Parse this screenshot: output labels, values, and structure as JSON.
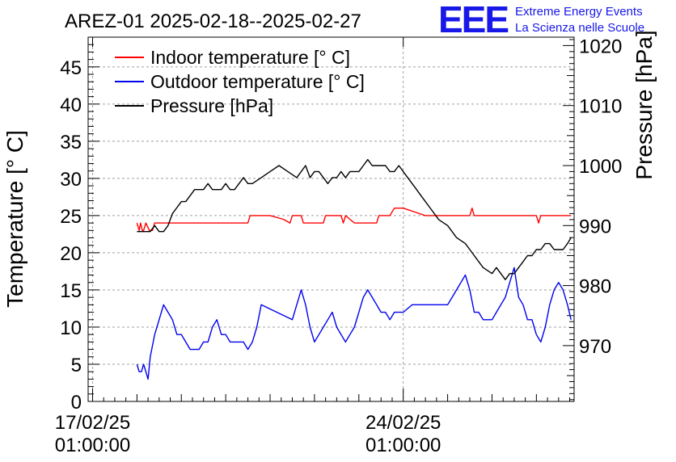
{
  "chart_data": {
    "type": "line",
    "title": "AREZ-01 2025-02-18--2025-02-27",
    "logo": {
      "mark": "EEE",
      "line1": "Extreme Energy Events",
      "line2": "La Scienza nelle Scuole",
      "color": "#1818e8"
    },
    "x_tick_labels": [
      {
        "date": "17/02/25",
        "time": "01:00:00",
        "day": 0
      },
      {
        "date": "24/02/25",
        "time": "01:00:00",
        "day": 7
      }
    ],
    "xlim_days": [
      -0.1,
      10.85
    ],
    "y_left": {
      "label": "Temperature [° C]",
      "ylim": [
        0,
        49
      ],
      "ticks": [
        0,
        5,
        10,
        15,
        20,
        25,
        30,
        35,
        40,
        45
      ]
    },
    "y_right": {
      "label": "Pressure [hPa]",
      "ylim": [
        960.7,
        1021.4
      ],
      "ticks": [
        970,
        980,
        990,
        1000,
        1010,
        1020
      ]
    },
    "grid": true,
    "legend_position": "top-left",
    "x_unit": "days since 17/02/25 01:00:00",
    "series": [
      {
        "name": "Indoor temperature [° C]",
        "color": "#ff0000",
        "axis": "left",
        "x": [
          1.0,
          1.05,
          1.08,
          1.12,
          1.15,
          1.2,
          1.28,
          1.35,
          1.4,
          1.5,
          1.6,
          1.8,
          2.0,
          2.5,
          3.0,
          3.5,
          3.55,
          4.0,
          4.3,
          4.45,
          4.5,
          4.7,
          4.75,
          4.8,
          5.0,
          5.2,
          5.25,
          5.5,
          5.6,
          5.65,
          5.7,
          5.9,
          6.05,
          6.1,
          6.3,
          6.4,
          6.45,
          6.5,
          6.7,
          6.8,
          7.0,
          7.5,
          8.0,
          8.4,
          8.5,
          8.55,
          8.6,
          8.65,
          8.7,
          9.0,
          9.5,
          10.0,
          10.05,
          10.1,
          10.3,
          10.5,
          10.75,
          10.78
        ],
        "y": [
          24,
          23,
          24,
          23,
          23,
          24,
          23,
          23,
          24,
          24,
          24,
          24,
          24,
          24,
          24,
          24,
          25,
          25,
          24.5,
          24,
          25,
          25,
          24,
          24,
          24,
          24,
          25,
          25,
          25,
          24,
          25,
          24,
          24,
          24,
          24,
          24,
          25,
          25,
          25,
          26,
          26,
          25,
          25,
          25,
          25,
          26,
          25,
          25,
          25,
          25,
          25,
          25,
          24,
          25,
          25,
          25,
          25,
          25
        ]
      },
      {
        "name": "Outdoor temperature [° C]",
        "color": "#0000ee",
        "axis": "left",
        "x": [
          1.0,
          1.05,
          1.1,
          1.15,
          1.2,
          1.25,
          1.3,
          1.4,
          1.5,
          1.6,
          1.7,
          1.8,
          1.9,
          2.0,
          2.1,
          2.2,
          2.3,
          2.4,
          2.5,
          2.6,
          2.7,
          2.8,
          2.9,
          3.0,
          3.1,
          3.2,
          3.3,
          3.4,
          3.5,
          3.6,
          3.7,
          3.8,
          4.5,
          4.6,
          4.7,
          4.8,
          4.9,
          5.0,
          5.1,
          5.2,
          5.3,
          5.4,
          5.5,
          5.6,
          5.7,
          5.8,
          5.9,
          6.0,
          6.1,
          6.2,
          6.3,
          6.4,
          6.5,
          6.6,
          6.7,
          6.8,
          6.9,
          7.0,
          7.2,
          7.4,
          7.6,
          7.8,
          8.0,
          8.1,
          8.2,
          8.3,
          8.4,
          8.5,
          8.6,
          8.7,
          8.8,
          8.9,
          9.0,
          9.1,
          9.2,
          9.3,
          9.4,
          9.5,
          9.6,
          9.7,
          9.8,
          9.9,
          10.0,
          10.1,
          10.2,
          10.3,
          10.4,
          10.5,
          10.6,
          10.7,
          10.78
        ],
        "y": [
          5,
          4,
          4,
          5,
          4,
          3,
          6,
          9,
          11,
          13,
          12,
          11,
          9,
          9,
          8,
          7,
          7,
          7,
          8,
          8,
          10,
          11,
          9,
          9,
          8,
          8,
          8,
          8,
          7,
          8,
          10,
          13,
          11,
          13,
          15,
          13,
          10,
          8,
          9,
          10,
          11,
          12,
          10,
          9,
          8,
          9,
          10,
          12,
          14,
          15,
          14,
          13,
          12,
          12,
          11,
          12,
          12,
          12,
          13,
          13,
          13,
          13,
          13,
          14,
          15,
          16,
          17,
          15,
          12,
          12,
          11,
          11,
          11,
          12,
          13,
          14,
          16,
          18,
          14,
          13,
          11,
          11,
          9,
          8,
          10,
          13,
          15,
          16,
          15,
          13,
          11
        ]
      },
      {
        "name": "Pressure [hPa]",
        "color": "#000000",
        "axis": "right",
        "x": [
          1.0,
          1.1,
          1.2,
          1.3,
          1.4,
          1.5,
          1.6,
          1.7,
          1.8,
          1.9,
          2.0,
          2.1,
          2.2,
          2.3,
          2.4,
          2.5,
          2.6,
          2.7,
          2.8,
          2.9,
          3.0,
          3.1,
          3.2,
          3.3,
          3.4,
          3.5,
          3.6,
          3.8,
          4.0,
          4.2,
          4.4,
          4.6,
          4.8,
          4.9,
          5.0,
          5.1,
          5.2,
          5.3,
          5.4,
          5.5,
          5.6,
          5.7,
          5.8,
          5.9,
          6.0,
          6.1,
          6.2,
          6.3,
          6.4,
          6.5,
          6.6,
          6.7,
          6.8,
          6.9,
          7.0,
          7.1,
          7.2,
          7.3,
          7.4,
          7.6,
          7.8,
          8.0,
          8.2,
          8.4,
          8.5,
          8.6,
          8.7,
          8.8,
          9.0,
          9.1,
          9.2,
          9.3,
          9.4,
          9.5,
          9.6,
          9.7,
          9.8,
          9.9,
          10.0,
          10.1,
          10.2,
          10.3,
          10.4,
          10.5,
          10.6,
          10.7,
          10.78
        ],
        "y": [
          989,
          989,
          989,
          989,
          990,
          989,
          989,
          990,
          992,
          993,
          994,
          994,
          995,
          996,
          996,
          996,
          997,
          996,
          996,
          996,
          997,
          996,
          996,
          997,
          998,
          997,
          997,
          998,
          999,
          1000,
          999,
          998,
          1000,
          998,
          999,
          999,
          998,
          997,
          998,
          998,
          999,
          998,
          999,
          999,
          999,
          1000,
          1001,
          1000,
          1000,
          1000,
          1000,
          999,
          999,
          1000,
          999,
          998,
          997,
          996,
          995,
          993,
          991,
          990,
          988,
          987,
          986,
          985,
          984,
          983,
          982,
          983,
          982,
          981,
          982,
          982,
          983,
          984,
          985,
          985,
          986,
          986,
          987,
          987,
          986,
          986,
          986,
          987,
          988
        ]
      }
    ]
  }
}
